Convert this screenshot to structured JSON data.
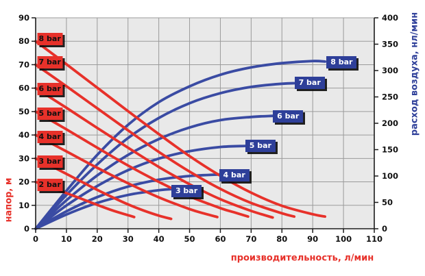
{
  "colors": {
    "red": "#e7312a",
    "blue_curve": "#3a4ba3",
    "blue_box": "#2e3f99",
    "plot_bg": "#e9e9e9",
    "grid": "#9a9a9a",
    "axis": "#1b1b1b",
    "tick_text": "#111111",
    "red_box_text": "#101010",
    "blue_box_text": "#ffffff"
  },
  "chart_data": {
    "type": "line",
    "title": "",
    "xlabel": "производительность, л/мин",
    "ylabel_left": "напор, м",
    "ylabel_right": "расход воздуха, нл/мин",
    "x_axis": {
      "min": 0,
      "max": 110,
      "ticks": [
        0,
        10,
        20,
        30,
        40,
        50,
        60,
        70,
        80,
        90,
        100,
        110
      ]
    },
    "y_left_axis": {
      "min": 0,
      "max": 90,
      "ticks": [
        0,
        10,
        20,
        30,
        40,
        50,
        60,
        70,
        80,
        90
      ]
    },
    "y_right_axis": {
      "min": 0,
      "max": 400,
      "ticks": [
        0,
        50,
        100,
        150,
        200,
        250,
        300,
        350,
        400
      ]
    },
    "grid": true,
    "legend_position": "boxed labels on curves",
    "series": [
      {
        "id": "head-8bar",
        "name": "8 bar",
        "group": "head",
        "axis": "left",
        "color": "#e7312a",
        "points": [
          [
            0,
            80
          ],
          [
            10,
            70.2
          ],
          [
            20,
            60.2
          ],
          [
            30,
            50.2
          ],
          [
            40,
            40.4
          ],
          [
            50,
            31
          ],
          [
            60,
            22.6
          ],
          [
            70,
            15.4
          ],
          [
            80,
            9.8
          ],
          [
            90,
            6.2
          ],
          [
            94,
            5.2
          ]
        ],
        "label": {
          "text": "8 bar",
          "x": 4.6,
          "y": 81
        }
      },
      {
        "id": "head-7bar",
        "name": "7 bar",
        "group": "head",
        "axis": "left",
        "color": "#e7312a",
        "points": [
          [
            0,
            70
          ],
          [
            10,
            60.8
          ],
          [
            20,
            51.4
          ],
          [
            30,
            42
          ],
          [
            40,
            32.8
          ],
          [
            50,
            24.4
          ],
          [
            60,
            17
          ],
          [
            70,
            11
          ],
          [
            80,
            6.6
          ],
          [
            84,
            5.2
          ]
        ],
        "label": {
          "text": "7 bar",
          "x": 4.6,
          "y": 70.9
        }
      },
      {
        "id": "head-6bar",
        "name": "6 bar",
        "group": "head",
        "axis": "left",
        "color": "#e7312a",
        "points": [
          [
            0,
            60
          ],
          [
            10,
            51.6
          ],
          [
            20,
            43
          ],
          [
            30,
            34.6
          ],
          [
            40,
            26.4
          ],
          [
            50,
            19
          ],
          [
            60,
            12.6
          ],
          [
            70,
            7.6
          ],
          [
            77,
            4.8
          ]
        ],
        "label": {
          "text": "6 bar",
          "x": 4.6,
          "y": 59.7
        }
      },
      {
        "id": "head-5bar",
        "name": "5 bar",
        "group": "head",
        "axis": "left",
        "color": "#e7312a",
        "points": [
          [
            0,
            50
          ],
          [
            10,
            42.4
          ],
          [
            20,
            34.6
          ],
          [
            30,
            27
          ],
          [
            40,
            20
          ],
          [
            50,
            13.8
          ],
          [
            60,
            8.8
          ],
          [
            65,
            6.8
          ],
          [
            69,
            5.2
          ]
        ],
        "label": {
          "text": "5 bar",
          "x": 4.6,
          "y": 49
        }
      },
      {
        "id": "head-4bar",
        "name": "4 bar",
        "group": "head",
        "axis": "left",
        "color": "#e7312a",
        "points": [
          [
            0,
            40
          ],
          [
            10,
            33
          ],
          [
            20,
            26
          ],
          [
            30,
            19.4
          ],
          [
            40,
            13.4
          ],
          [
            50,
            8.4
          ],
          [
            55,
            6.4
          ],
          [
            59,
            5
          ]
        ],
        "label": {
          "text": "4 bar",
          "x": 4.6,
          "y": 39.2
        }
      },
      {
        "id": "head-3bar",
        "name": "3 bar",
        "group": "head",
        "axis": "left",
        "color": "#e7312a",
        "points": [
          [
            0,
            30
          ],
          [
            5,
            26.8
          ],
          [
            10,
            23.4
          ],
          [
            15,
            20
          ],
          [
            20,
            16.6
          ],
          [
            25,
            13.4
          ],
          [
            30,
            10.4
          ],
          [
            35,
            7.8
          ],
          [
            40,
            5.6
          ],
          [
            44,
            4.2
          ]
        ],
        "label": {
          "text": "3 bar",
          "x": 4.6,
          "y": 28.7
        }
      },
      {
        "id": "head-2bar",
        "name": "2 bar",
        "group": "head",
        "axis": "left",
        "color": "#e7312a",
        "points": [
          [
            0,
            20
          ],
          [
            5,
            17.6
          ],
          [
            10,
            15.2
          ],
          [
            15,
            12.7
          ],
          [
            20,
            10.2
          ],
          [
            25,
            7.8
          ],
          [
            30,
            5.8
          ],
          [
            32,
            5
          ]
        ],
        "label": {
          "text": "2 bar",
          "x": 4.6,
          "y": 18.7
        }
      },
      {
        "id": "air-8bar",
        "name": "8 bar",
        "group": "air",
        "axis": "right",
        "color": "#3a4ba3",
        "points": [
          [
            0,
            0
          ],
          [
            10,
            72
          ],
          [
            20,
            140
          ],
          [
            30,
            197
          ],
          [
            40,
            240
          ],
          [
            50,
            270
          ],
          [
            60,
            292
          ],
          [
            70,
            306
          ],
          [
            80,
            314
          ],
          [
            90,
            318
          ],
          [
            94,
            317
          ]
        ],
        "label": {
          "text": "8 bar",
          "x": 99.4,
          "y": 316
        }
      },
      {
        "id": "air-7bar",
        "name": "7 bar",
        "group": "air",
        "axis": "right",
        "color": "#3a4ba3",
        "points": [
          [
            0,
            0
          ],
          [
            10,
            64
          ],
          [
            20,
            122
          ],
          [
            30,
            172
          ],
          [
            40,
            210
          ],
          [
            50,
            238
          ],
          [
            60,
            257
          ],
          [
            70,
            269
          ],
          [
            80,
            275
          ],
          [
            84,
            276
          ]
        ],
        "label": {
          "text": "7 bar",
          "x": 89,
          "y": 277
        }
      },
      {
        "id": "air-6bar",
        "name": "6 bar",
        "group": "air",
        "axis": "right",
        "color": "#3a4ba3",
        "points": [
          [
            0,
            0
          ],
          [
            10,
            54
          ],
          [
            20,
            101
          ],
          [
            30,
            140
          ],
          [
            40,
            170
          ],
          [
            50,
            192
          ],
          [
            60,
            206
          ],
          [
            70,
            212
          ],
          [
            77,
            214
          ]
        ],
        "label": {
          "text": "6 bar",
          "x": 82,
          "y": 213
        }
      },
      {
        "id": "air-5bar",
        "name": "5 bar",
        "group": "air",
        "axis": "right",
        "color": "#3a4ba3",
        "points": [
          [
            0,
            0
          ],
          [
            10,
            44
          ],
          [
            20,
            81
          ],
          [
            30,
            111
          ],
          [
            40,
            133
          ],
          [
            50,
            147
          ],
          [
            60,
            155
          ],
          [
            68,
            157
          ]
        ],
        "label": {
          "text": "5 bar",
          "x": 73,
          "y": 157
        }
      },
      {
        "id": "air-4bar",
        "name": "4 bar",
        "group": "air",
        "axis": "right",
        "color": "#3a4ba3",
        "points": [
          [
            0,
            0
          ],
          [
            10,
            33
          ],
          [
            20,
            60
          ],
          [
            30,
            80
          ],
          [
            40,
            93
          ],
          [
            50,
            100
          ],
          [
            60,
            103
          ]
        ],
        "label": {
          "text": "4 bar",
          "x": 64.5,
          "y": 101
        }
      },
      {
        "id": "air-3bar",
        "name": "3 bar",
        "group": "air",
        "axis": "right",
        "color": "#3a4ba3",
        "points": [
          [
            0,
            0
          ],
          [
            10,
            27
          ],
          [
            20,
            49
          ],
          [
            30,
            64
          ],
          [
            40,
            73
          ],
          [
            46,
            76
          ]
        ],
        "label": {
          "text": "3 bar",
          "x": 49,
          "y": 72
        }
      }
    ]
  }
}
